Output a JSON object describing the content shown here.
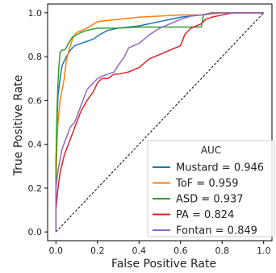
{
  "chart_data": {
    "type": "line",
    "xlabel": "False Positive Rate",
    "ylabel": "True Positive Rate",
    "xlim": [
      0.0,
      1.0
    ],
    "ylim": [
      0.0,
      1.0
    ],
    "xticks": [
      "0.0",
      "0.2",
      "0.4",
      "0.6",
      "0.8",
      "1.0"
    ],
    "yticks": [
      "0.0",
      "0.2",
      "0.4",
      "0.6",
      "0.8",
      "1.0"
    ],
    "grid": false,
    "legend": {
      "title": "AUC",
      "placement": "lower-right"
    },
    "reference_line": {
      "x": [
        0,
        1
      ],
      "y": [
        0,
        1
      ],
      "style": "dashed",
      "color": "#000000"
    },
    "series": [
      {
        "name": "Mustard = 0.946",
        "color": "#1f77b4",
        "x": [
          0.0,
          0.0,
          0.005,
          0.01,
          0.02,
          0.03,
          0.05,
          0.07,
          0.09,
          0.12,
          0.15,
          0.18,
          0.21,
          0.25,
          0.3,
          0.35,
          0.4,
          0.45,
          0.5,
          0.55,
          0.6,
          0.65,
          0.7,
          0.75,
          0.8,
          0.85,
          0.9,
          1.0
        ],
        "y": [
          0.0,
          0.3,
          0.5,
          0.62,
          0.7,
          0.76,
          0.8,
          0.83,
          0.85,
          0.86,
          0.87,
          0.88,
          0.9,
          0.92,
          0.93,
          0.935,
          0.94,
          0.95,
          0.96,
          0.97,
          0.98,
          0.985,
          0.99,
          0.995,
          1.0,
          1.0,
          1.0,
          1.0
        ]
      },
      {
        "name": "ToF = 0.959",
        "color": "#ff7f0e",
        "x": [
          0.0,
          0.0,
          0.005,
          0.01,
          0.02,
          0.03,
          0.04,
          0.05,
          0.06,
          0.07,
          0.08,
          0.09,
          0.1,
          0.15,
          0.2,
          0.3,
          0.4,
          0.5,
          0.6,
          0.7,
          0.75,
          0.8,
          0.9,
          1.0
        ],
        "y": [
          0.0,
          0.2,
          0.4,
          0.5,
          0.6,
          0.65,
          0.7,
          0.78,
          0.82,
          0.85,
          0.88,
          0.9,
          0.91,
          0.93,
          0.96,
          0.97,
          0.98,
          0.985,
          0.99,
          0.99,
          0.995,
          1.0,
          1.0,
          1.0
        ]
      },
      {
        "name": "ASD = 0.937",
        "color": "#2ca02c",
        "x": [
          0.0,
          0.0,
          0.005,
          0.01,
          0.015,
          0.02,
          0.03,
          0.04,
          0.05,
          0.06,
          0.08,
          0.1,
          0.12,
          0.15,
          0.2,
          0.3,
          0.4,
          0.5,
          0.6,
          0.7,
          0.71,
          0.75,
          0.8,
          1.0
        ],
        "y": [
          0.0,
          0.3,
          0.55,
          0.68,
          0.76,
          0.82,
          0.83,
          0.83,
          0.84,
          0.86,
          0.89,
          0.9,
          0.91,
          0.92,
          0.93,
          0.93,
          0.935,
          0.935,
          0.935,
          0.935,
          0.99,
          1.0,
          1.0,
          1.0
        ]
      },
      {
        "name": "PA = 0.824",
        "color": "#d62728",
        "x": [
          0.0,
          0.0,
          0.01,
          0.02,
          0.04,
          0.06,
          0.08,
          0.1,
          0.12,
          0.15,
          0.18,
          0.2,
          0.22,
          0.25,
          0.28,
          0.3,
          0.35,
          0.4,
          0.45,
          0.5,
          0.55,
          0.6,
          0.62,
          0.65,
          0.7,
          0.72,
          0.75,
          0.8,
          0.85,
          1.0
        ],
        "y": [
          0.0,
          0.1,
          0.2,
          0.27,
          0.35,
          0.4,
          0.45,
          0.5,
          0.55,
          0.6,
          0.64,
          0.68,
          0.7,
          0.7,
          0.72,
          0.72,
          0.73,
          0.75,
          0.79,
          0.81,
          0.83,
          0.85,
          0.9,
          0.93,
          0.95,
          0.97,
          0.98,
          0.99,
          1.0,
          1.0
        ]
      },
      {
        "name": "Fontan = 0.849",
        "color": "#9467bd",
        "x": [
          0.0,
          0.0,
          0.01,
          0.02,
          0.03,
          0.05,
          0.07,
          0.09,
          0.11,
          0.13,
          0.15,
          0.18,
          0.2,
          0.22,
          0.25,
          0.28,
          0.3,
          0.33,
          0.35,
          0.4,
          0.45,
          0.5,
          0.55,
          0.6,
          0.65,
          0.7,
          0.75,
          0.8,
          1.0
        ],
        "y": [
          0.0,
          0.2,
          0.28,
          0.33,
          0.38,
          0.43,
          0.48,
          0.5,
          0.55,
          0.6,
          0.65,
          0.68,
          0.7,
          0.71,
          0.72,
          0.73,
          0.76,
          0.8,
          0.84,
          0.86,
          0.9,
          0.93,
          0.95,
          0.97,
          0.985,
          0.99,
          1.0,
          1.0,
          1.0
        ]
      }
    ]
  }
}
